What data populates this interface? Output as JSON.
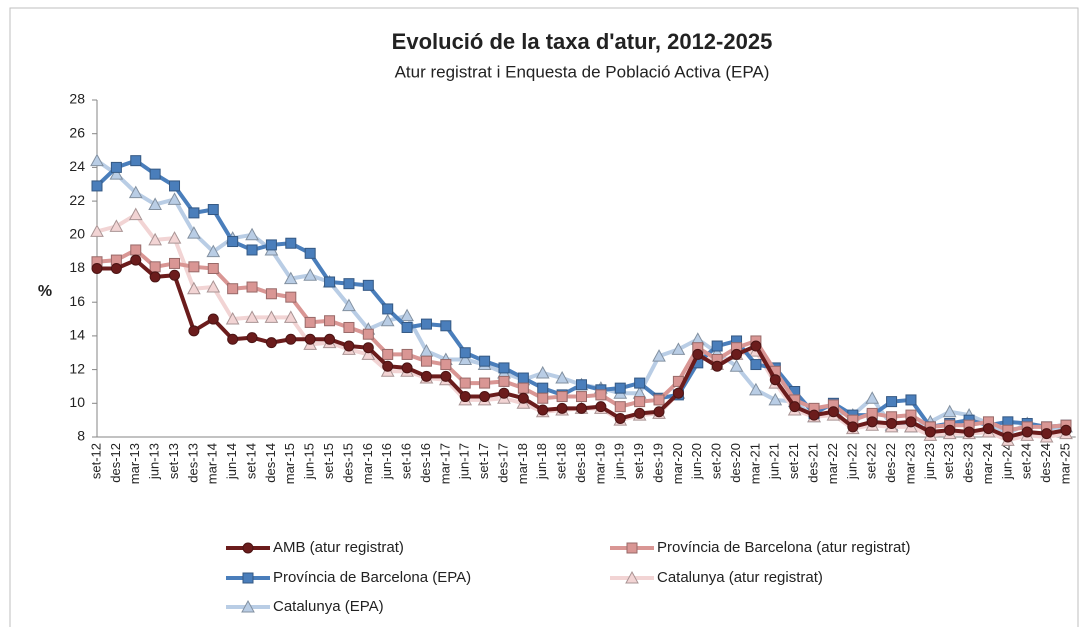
{
  "chart_data": {
    "type": "line",
    "title": "Evolució de la taxa d'atur, 2012-2025",
    "subtitle": "Atur registrat i Enquesta de Població Activa (EPA)",
    "y_label": "%",
    "categories": [
      "set-12",
      "des-12",
      "mar-13",
      "jun-13",
      "set-13",
      "des-13",
      "mar-14",
      "jun-14",
      "set-14",
      "des-14",
      "mar-15",
      "jun-15",
      "set-15",
      "des-15",
      "mar-16",
      "jun-16",
      "set-16",
      "des-16",
      "mar-17",
      "jun-17",
      "set-17",
      "des-17",
      "mar-18",
      "jun-18",
      "set-18",
      "des-18",
      "mar-19",
      "jun-19",
      "set-19",
      "des-19",
      "mar-20",
      "jun-20",
      "set-20",
      "des-20",
      "mar-21",
      "jun-21",
      "set-21",
      "des-21",
      "mar-22",
      "jun-22",
      "set-22",
      "des-22",
      "mar-23",
      "jun-23",
      "set-23",
      "des-23",
      "mar-24",
      "jun-24",
      "set-24",
      "des-24",
      "mar-25"
    ],
    "series": [
      {
        "name": "AMB (atur registrat)",
        "color": "#6b1c1c",
        "marker": "circle",
        "values": [
          18.0,
          18.0,
          18.5,
          17.5,
          17.6,
          14.3,
          15.0,
          13.8,
          13.9,
          13.6,
          13.8,
          13.8,
          13.8,
          13.4,
          13.3,
          12.2,
          12.1,
          11.6,
          11.6,
          10.4,
          10.4,
          10.6,
          10.3,
          9.6,
          9.7,
          9.7,
          9.8,
          9.1,
          9.4,
          9.5,
          10.6,
          12.9,
          12.2,
          12.9,
          13.4,
          11.4,
          9.8,
          9.3,
          9.5,
          8.6,
          8.9,
          8.8,
          8.9,
          8.3,
          8.4,
          8.3,
          8.5,
          8.0,
          8.3,
          8.2,
          8.4
        ]
      },
      {
        "name": "Província de Barcelona (atur registrat)",
        "color": "#d99694",
        "marker": "square",
        "values": [
          18.4,
          18.5,
          19.1,
          18.1,
          18.3,
          18.1,
          18.0,
          16.8,
          16.9,
          16.5,
          16.3,
          14.8,
          14.9,
          14.5,
          14.1,
          12.9,
          12.9,
          12.5,
          12.3,
          11.2,
          11.2,
          11.3,
          10.9,
          10.3,
          10.4,
          10.4,
          10.5,
          9.8,
          10.1,
          10.2,
          11.3,
          13.3,
          12.6,
          13.3,
          13.7,
          11.9,
          10.2,
          9.7,
          9.9,
          9.0,
          9.4,
          9.2,
          9.3,
          8.6,
          8.7,
          8.7,
          8.9,
          8.4,
          8.6,
          8.6,
          8.7
        ]
      },
      {
        "name": "Província de Barcelona (EPA)",
        "color": "#4a7ebb",
        "marker": "square",
        "values": [
          22.9,
          24.0,
          24.4,
          23.6,
          22.9,
          21.3,
          21.5,
          19.6,
          19.1,
          19.4,
          19.5,
          18.9,
          17.2,
          17.1,
          17.0,
          15.6,
          14.5,
          14.7,
          14.6,
          13.0,
          12.5,
          12.1,
          11.5,
          10.9,
          10.5,
          11.1,
          10.8,
          10.9,
          11.2,
          10.3,
          10.5,
          12.4,
          13.4,
          13.7,
          12.3,
          12.1,
          10.7,
          9.4,
          10.0,
          9.3,
          9.3,
          10.1,
          10.2,
          8.6,
          8.8,
          9.0,
          8.7,
          8.9,
          8.8,
          8.6,
          8.7
        ]
      },
      {
        "name": "Catalunya (atur registrat)",
        "color": "#f2d4d4",
        "marker": "triangle",
        "values": [
          20.2,
          20.5,
          21.2,
          19.7,
          19.8,
          16.8,
          16.9,
          15.0,
          15.1,
          15.1,
          15.1,
          13.5,
          13.6,
          13.2,
          12.9,
          11.9,
          11.9,
          11.5,
          11.4,
          10.2,
          10.2,
          10.3,
          10.0,
          9.5,
          9.6,
          9.7,
          9.7,
          9.0,
          9.3,
          9.4,
          10.6,
          13.0,
          12.3,
          12.9,
          13.1,
          11.2,
          9.6,
          9.2,
          9.3,
          8.5,
          8.7,
          8.6,
          8.6,
          8.1,
          8.2,
          8.2,
          8.3,
          7.8,
          8.1,
          8.0,
          8.2
        ]
      },
      {
        "name": "Catalunya (EPA)",
        "color": "#b9cde5",
        "marker": "triangle",
        "values": [
          24.4,
          23.6,
          22.5,
          21.8,
          22.1,
          20.1,
          19.0,
          19.8,
          20.0,
          19.1,
          17.4,
          17.6,
          17.2,
          15.8,
          14.4,
          14.9,
          15.2,
          13.1,
          12.6,
          12.6,
          12.3,
          11.8,
          11.4,
          11.8,
          11.5,
          11.1,
          10.9,
          10.6,
          10.6,
          12.8,
          13.2,
          13.8,
          13.0,
          12.2,
          10.8,
          10.2,
          10.1,
          9.2,
          9.5,
          9.3,
          10.3,
          8.7,
          8.6,
          8.9,
          9.5,
          9.3,
          8.8,
          8.2,
          8.8,
          8.5,
          8.6
        ]
      }
    ],
    "ylim": [
      8,
      28
    ],
    "yticks": [
      8,
      10,
      12,
      14,
      16,
      18,
      20,
      22,
      24,
      26,
      28
    ],
    "grid": false,
    "legend": "bottom"
  }
}
